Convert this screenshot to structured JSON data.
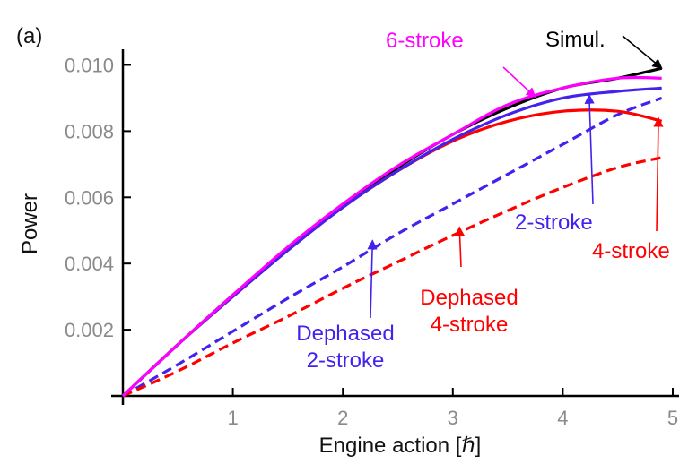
{
  "chart_data": {
    "type": "line",
    "panel_label": "(a)",
    "xlabel": "Engine action [ℏ]",
    "ylabel": "Power",
    "xlim": [
      0,
      5
    ],
    "ylim": [
      0,
      0.0105
    ],
    "x_ticks": [
      1,
      2,
      3,
      4,
      5
    ],
    "x_tick_labels": [
      "1",
      "2",
      "3",
      "4",
      "5"
    ],
    "y_ticks": [
      0.002,
      0.004,
      0.006,
      0.008,
      0.01
    ],
    "y_tick_labels": [
      "0.002",
      "0.004",
      "0.006",
      "0.008",
      "0.010"
    ],
    "grid": false,
    "x": [
      0,
      0.5,
      1,
      1.5,
      2,
      2.5,
      3,
      3.5,
      4,
      4.5,
      4.9
    ],
    "series": [
      {
        "name": "Simul.",
        "color": "#000000",
        "style": "solid",
        "values": [
          0,
          0.00155,
          0.00305,
          0.00445,
          0.00575,
          0.0069,
          0.0079,
          0.0087,
          0.0093,
          0.0096,
          0.0099
        ]
      },
      {
        "name": "6-stroke",
        "color": "#ff00ff",
        "style": "solid",
        "values": [
          0,
          0.00155,
          0.00305,
          0.0045,
          0.0058,
          0.00695,
          0.0079,
          0.0088,
          0.0093,
          0.0096,
          0.0096
        ]
      },
      {
        "name": "4-stroke",
        "color": "#ff0000",
        "style": "solid",
        "values": [
          0,
          0.00155,
          0.003,
          0.0044,
          0.0057,
          0.0068,
          0.0077,
          0.0083,
          0.0086,
          0.0086,
          0.0083
        ]
      },
      {
        "name": "2-stroke",
        "color": "#4422ee",
        "style": "solid",
        "values": [
          0,
          0.00155,
          0.003,
          0.0044,
          0.0057,
          0.0068,
          0.00775,
          0.0085,
          0.009,
          0.0092,
          0.0093
        ]
      },
      {
        "name": "Dephased 2-stroke",
        "color": "#4422ee",
        "style": "dashed",
        "values": [
          0,
          0.00095,
          0.00195,
          0.00295,
          0.0039,
          0.0049,
          0.0058,
          0.0067,
          0.0076,
          0.0085,
          0.009
        ]
      },
      {
        "name": "Dephased 4-stroke",
        "color": "#ff0000",
        "style": "dashed",
        "values": [
          0,
          0.00075,
          0.0016,
          0.0024,
          0.00325,
          0.00405,
          0.00485,
          0.0056,
          0.0063,
          0.0069,
          0.0072
        ]
      }
    ],
    "annotations": [
      {
        "id": "6-stroke",
        "text": "6-stroke",
        "color": "#ff00ff",
        "point_to": {
          "x": 3.75,
          "y": 0.00903
        }
      },
      {
        "id": "simul",
        "text": "Simul.",
        "color": "#000000",
        "point_to": {
          "x": 4.9,
          "y": 0.0099
        }
      },
      {
        "id": "2-stroke",
        "text": "2-stroke",
        "color": "#4422ee",
        "point_to": {
          "x": 4.24,
          "y": 0.0091
        }
      },
      {
        "id": "4-stroke",
        "text": "4-stroke",
        "color": "#ff0000",
        "point_to": {
          "x": 4.87,
          "y": 0.0084
        }
      },
      {
        "id": "dephased-2-stroke",
        "lines": [
          "Dephased",
          "2-stroke"
        ],
        "color": "#4422ee",
        "point_to": {
          "x": 2.27,
          "y": 0.0047
        }
      },
      {
        "id": "dephased-4-stroke",
        "lines": [
          "Dephased",
          "4-stroke"
        ],
        "color": "#ff0000",
        "point_to": {
          "x": 3.06,
          "y": 0.0051
        }
      }
    ]
  }
}
